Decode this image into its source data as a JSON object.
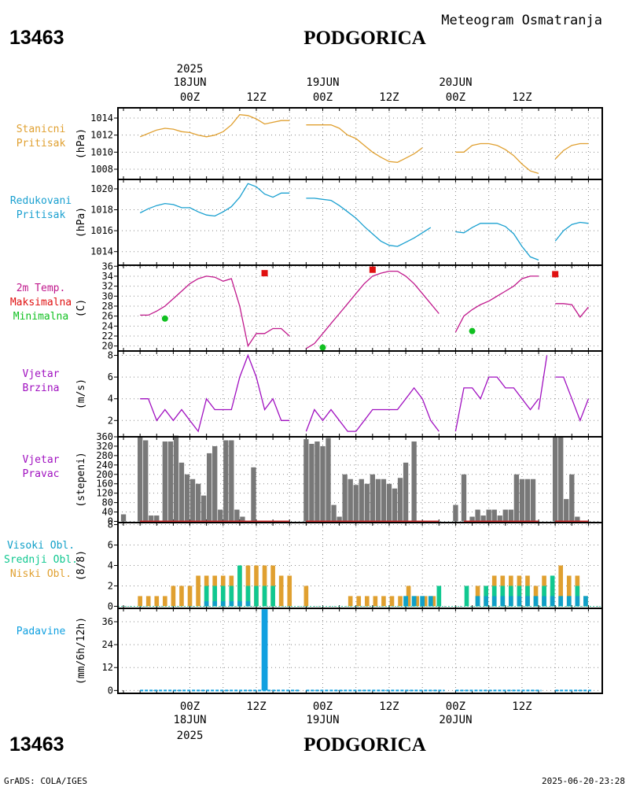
{
  "header": {
    "station_id": "13463",
    "station_name": "PODGORICA",
    "subtitle": "Meteogram Osmatranja",
    "footer_left": "GrADS: COLA/IGES",
    "footer_right": "2025-06-20-23:28"
  },
  "time_axis": {
    "ticks": [
      "00Z",
      "12Z",
      "00Z",
      "12Z",
      "00Z",
      "12Z"
    ],
    "top_dates": [
      {
        "year": "2025",
        "date": "18JUN"
      },
      {
        "year": "",
        "date": "19JUN"
      },
      {
        "year": "",
        "date": "20JUN"
      }
    ],
    "bottom_dates": [
      {
        "date": "18JUN",
        "year": "2025"
      },
      {
        "date": "19JUN",
        "year": ""
      },
      {
        "date": "20JUN",
        "year": ""
      }
    ]
  },
  "colors": {
    "pressure": "#e0a030",
    "reduced": "#1aa0d0",
    "temp": "#c0188c",
    "tmax": "#e01010",
    "tmin": "#10c020",
    "wind": "#a010c0",
    "dir_bar": "#787878",
    "dir_base": "#d03030",
    "cloud_high": "#10a0c8",
    "cloud_mid": "#10c890",
    "cloud_low": "#e0a030",
    "precip": "#10a0e0"
  },
  "chart_data": [
    {
      "type": "line",
      "panel": "station_pressure",
      "labels": [
        "Stanicni",
        "Pritisak"
      ],
      "ylabel": "(hPa)",
      "yticks": [
        1008,
        1010,
        1012,
        1014
      ],
      "ylim": [
        1006.8,
        1015.2
      ],
      "segments": [
        {
          "x": [
            -18,
            -15,
            -12,
            -9,
            -6,
            -3,
            0,
            3,
            6,
            9,
            12,
            15,
            18,
            21,
            24,
            27,
            30,
            33,
            36,
            39,
            42,
            45,
            48,
            51,
            54
          ],
          "y": [
            1011.8,
            1012.2,
            1012.6,
            1012.8,
            1012.7,
            1012.4,
            1012.3,
            1012.0,
            1011.8,
            1012.0,
            1012.4,
            1013.2,
            1014.4,
            1014.3,
            1013.9,
            1013.3,
            1013.5,
            1013.7,
            1013.7,
            null,
            null,
            null,
            null,
            null,
            null
          ]
        },
        {
          "x": [
            42,
            45,
            48,
            51,
            54,
            57,
            60,
            63,
            66,
            69,
            72,
            75,
            78,
            81,
            84,
            87,
            90
          ],
          "y": [
            1013.2,
            1013.2,
            1013.2,
            1013.2,
            1012.8,
            1012.0,
            1011.6,
            1010.8,
            1010.0,
            1009.4,
            1008.9,
            1008.8,
            1009.3,
            1009.8,
            1010.5,
            null,
            null
          ]
        },
        {
          "x": [
            96,
            99,
            102,
            105,
            108,
            111,
            114,
            117,
            120,
            123,
            126
          ],
          "y": [
            1010.0,
            1010.0,
            1010.8,
            1011.0,
            1011.0,
            1010.8,
            1010.3,
            1009.6,
            1008.6,
            1007.8,
            1007.5
          ]
        },
        {
          "x": [
            132,
            135,
            138,
            141,
            144
          ],
          "y": [
            1009.2,
            1010.2,
            1010.8,
            1011.0,
            1011.0
          ]
        }
      ]
    },
    {
      "type": "line",
      "panel": "reduced_pressure",
      "labels": [
        "Redukovani",
        "Pritisak"
      ],
      "ylabel": "(hPa)",
      "yticks": [
        1014,
        1016,
        1018,
        1020
      ],
      "ylim": [
        1012.7,
        1020.9
      ],
      "segments": [
        {
          "x": [
            -18,
            -15,
            -12,
            -9,
            -6,
            -3,
            0,
            3,
            6,
            9,
            12,
            15,
            18,
            21,
            24,
            27,
            30,
            33,
            36,
            39,
            42,
            45,
            48,
            51,
            54
          ],
          "y": [
            1017.7,
            1018.1,
            1018.4,
            1018.6,
            1018.5,
            1018.2,
            1018.2,
            1017.8,
            1017.5,
            1017.4,
            1017.8,
            1018.3,
            1019.2,
            1020.5,
            1020.2,
            1019.5,
            1019.2,
            1019.6,
            1019.6,
            null,
            null,
            null,
            null,
            null,
            null
          ]
        },
        {
          "x": [
            42,
            45,
            48,
            51,
            54,
            57,
            60,
            63,
            66,
            69,
            72,
            75,
            78,
            81,
            84,
            87,
            90
          ],
          "y": [
            1019.1,
            1019.1,
            1019.0,
            1018.9,
            1018.4,
            1017.8,
            1017.2,
            1016.4,
            1015.7,
            1015.0,
            1014.6,
            1014.5,
            1014.9,
            1015.3,
            1015.8,
            1016.3,
            null
          ]
        },
        {
          "x": [
            96,
            99,
            102,
            105,
            108,
            111,
            114,
            117,
            120,
            123,
            126
          ],
          "y": [
            1015.9,
            1015.8,
            1016.3,
            1016.7,
            1016.7,
            1016.7,
            1016.4,
            1015.7,
            1014.5,
            1013.5,
            1013.2
          ]
        },
        {
          "x": [
            132,
            135,
            138,
            141,
            144
          ],
          "y": [
            1015.0,
            1016.0,
            1016.6,
            1016.8,
            1016.7
          ]
        }
      ]
    },
    {
      "type": "line",
      "panel": "temperature",
      "labels": [
        "2m Temp.",
        "Maksimalna",
        "Minimalna"
      ],
      "ylabel": "(C)",
      "yticks": [
        20,
        22,
        24,
        26,
        28,
        30,
        32,
        34,
        36
      ],
      "ylim": [
        19,
        36.2
      ],
      "segments": [
        {
          "x": [
            -18,
            -15,
            -12,
            -9,
            -6,
            -3,
            0,
            3,
            6,
            9,
            12,
            15,
            18,
            21,
            24,
            27,
            30,
            33,
            36
          ],
          "y": [
            26.2,
            26.2,
            27.0,
            28.0,
            29.5,
            31.0,
            32.5,
            33.5,
            34.0,
            33.8,
            33.0,
            33.5,
            28.0,
            20.0,
            22.5,
            22.5,
            23.5,
            23.5,
            22.0
          ]
        },
        {
          "x": [
            42,
            45,
            48,
            51,
            54,
            57,
            60,
            63,
            66,
            69,
            72,
            75,
            78,
            81,
            84,
            87,
            90
          ],
          "y": [
            19.5,
            20.5,
            22.5,
            24.5,
            26.5,
            28.5,
            30.5,
            32.5,
            34.0,
            34.6,
            35.0,
            35.0,
            34.0,
            32.5,
            30.5,
            28.5,
            26.5
          ]
        },
        {
          "x": [
            96,
            99,
            102,
            105,
            108,
            111,
            114,
            117,
            120,
            123,
            126
          ],
          "y": [
            22.8,
            26.0,
            27.3,
            28.3,
            29.0,
            30.0,
            31.0,
            32.0,
            33.5,
            34.0,
            34.0
          ]
        },
        {
          "x": [
            132,
            135,
            138,
            141,
            144
          ],
          "y": [
            28.5,
            28.5,
            28.3,
            25.8,
            27.8
          ]
        }
      ],
      "max_points": [
        {
          "x": 27,
          "y": 34.6
        },
        {
          "x": 66,
          "y": 35.3
        },
        {
          "x": 132,
          "y": 34.4
        }
      ],
      "min_points": [
        {
          "x": -9,
          "y": 25.5
        },
        {
          "x": 48,
          "y": 19.7
        },
        {
          "x": 102,
          "y": 23.0
        }
      ]
    },
    {
      "type": "line",
      "panel": "wind_speed",
      "labels": [
        "Vjetar",
        "Brzina"
      ],
      "ylabel": "(m/s)",
      "yticks": [
        2,
        4,
        6,
        8
      ],
      "ylim": [
        0.5,
        8.4
      ],
      "segments": [
        {
          "x": [
            -18,
            -15,
            -12,
            -9,
            -6,
            -3,
            0,
            3,
            6,
            9,
            12,
            15,
            18,
            21,
            24,
            27,
            30,
            33,
            36
          ],
          "y": [
            4,
            4,
            2,
            3,
            2,
            3,
            2,
            1,
            4,
            3,
            3,
            3,
            6,
            8,
            6,
            3,
            4,
            2,
            2
          ]
        },
        {
          "x": [
            42,
            45,
            48,
            51,
            54,
            57,
            60,
            63,
            66,
            69,
            72,
            75,
            78,
            81,
            84,
            87,
            90
          ],
          "y": [
            1,
            3,
            2,
            3,
            2,
            1,
            1,
            2,
            3,
            3,
            3,
            3,
            4,
            5,
            4,
            2,
            1
          ]
        },
        {
          "x": [
            96,
            99,
            102,
            105,
            108,
            111,
            114,
            117,
            120,
            123,
            126
          ],
          "y": [
            1,
            5,
            5,
            4,
            6,
            6,
            5,
            5,
            4,
            3,
            4
          ]
        },
        {
          "x": [
            126,
            129
          ],
          "y": [
            3,
            8
          ]
        },
        {
          "x": [
            132,
            135,
            138,
            141,
            144
          ],
          "y": [
            6,
            6,
            4,
            2,
            4
          ]
        }
      ]
    },
    {
      "type": "bar",
      "panel": "wind_direction",
      "labels": [
        "Vjetar",
        "Pravac"
      ],
      "ylabel": "(stepeni)",
      "yticks": [
        0,
        40,
        80,
        120,
        160,
        200,
        240,
        280,
        320,
        360
      ],
      "ylim": [
        -5,
        360
      ],
      "bar_width_hours": 2,
      "x": [
        -24,
        -18,
        -16,
        -14,
        -12,
        -9,
        -7,
        -5,
        -3,
        -1,
        1,
        3,
        5,
        7,
        9,
        11,
        13,
        15,
        17,
        19,
        21,
        23,
        25,
        27,
        29,
        36,
        42,
        44,
        46,
        48,
        50,
        52,
        54,
        56,
        58,
        60,
        62,
        64,
        66,
        68,
        70,
        72,
        74,
        76,
        78,
        81,
        84,
        87,
        96,
        99,
        102,
        104,
        106,
        108,
        110,
        112,
        114,
        116,
        118,
        120,
        122,
        124,
        126,
        128,
        130,
        132,
        134,
        136,
        138,
        140,
        142,
        144
      ],
      "y": [
        30,
        360,
        345,
        25,
        25,
        340,
        340,
        365,
        250,
        200,
        180,
        160,
        110,
        290,
        320,
        50,
        345,
        345,
        50,
        20,
        0,
        230,
        0,
        0,
        0,
        0,
        350,
        330,
        340,
        320,
        355,
        70,
        20,
        200,
        180,
        155,
        180,
        160,
        200,
        180,
        180,
        160,
        140,
        185,
        250,
        340,
        0,
        0,
        70,
        200,
        20,
        50,
        25,
        50,
        50,
        25,
        50,
        50,
        200,
        180,
        180,
        180,
        0,
        0,
        0,
        360,
        360,
        95,
        200,
        20,
        0,
        0
      ]
    },
    {
      "type": "bar",
      "panel": "cloud_cover",
      "labels": [
        "Visoki Obl.",
        "Srednji Obl.",
        "Niski Obl."
      ],
      "ylabel": "(8/8)",
      "yticks": [
        0,
        2,
        4,
        6,
        8
      ],
      "ylim": [
        -0.2,
        8.2
      ],
      "series": [
        {
          "name": "Niski",
          "color_key": "cloud_low",
          "x": [
            -18,
            -15,
            -12,
            -9,
            -6,
            -3,
            0,
            3,
            6,
            9,
            12,
            15,
            18,
            21,
            24,
            27,
            30,
            33,
            36,
            42,
            58,
            61,
            64,
            67,
            70,
            73,
            76,
            79,
            82,
            85,
            88,
            104,
            107,
            110,
            113,
            116,
            119,
            122,
            125,
            128,
            131,
            134,
            137,
            140,
            143
          ],
          "y": [
            1,
            1,
            1,
            1,
            2,
            2,
            2,
            3,
            3,
            3,
            3,
            3,
            4,
            4,
            4,
            4,
            4,
            3,
            3,
            2,
            1,
            1,
            1,
            1,
            1,
            1,
            1,
            2,
            1,
            1,
            1,
            2,
            2,
            3,
            3,
            3,
            3,
            3,
            2,
            3,
            2,
            4,
            3,
            3,
            1
          ]
        },
        {
          "name": "Srednji",
          "color_key": "cloud_mid",
          "x": [
            6,
            9,
            12,
            15,
            18,
            21,
            24,
            27,
            30,
            78,
            81,
            84,
            87,
            90,
            100,
            104,
            107,
            110,
            113,
            116,
            119,
            122,
            125,
            128,
            131,
            134,
            137,
            140,
            143
          ],
          "y": [
            2,
            2,
            2,
            2,
            4,
            2,
            2,
            2,
            2,
            1,
            1,
            1,
            1,
            2,
            2,
            1,
            2,
            2,
            2,
            2,
            2,
            2,
            1,
            2,
            3,
            1,
            1,
            2,
            1
          ]
        },
        {
          "name": "Visoki",
          "color_key": "cloud_high",
          "x": [
            6,
            9,
            12,
            15,
            18,
            21,
            78,
            81,
            84,
            87,
            104,
            107,
            110,
            113,
            116,
            119,
            122,
            125,
            128,
            131,
            134,
            137,
            140,
            143
          ],
          "y": [
            0.5,
            0.5,
            0.5,
            0.5,
            0.5,
            0.5,
            1,
            1,
            1,
            1,
            1,
            1,
            1,
            1,
            1,
            1,
            1,
            1,
            1,
            1,
            1,
            1,
            1,
            1
          ]
        }
      ]
    },
    {
      "type": "bar",
      "panel": "precipitation",
      "labels": [
        "Padavine"
      ],
      "ylabel": "(mm/6h/12h)",
      "yticks": [
        0,
        12,
        24,
        36
      ],
      "ylim": [
        -1.5,
        43
      ],
      "bar_width_hours": 2,
      "x": [
        27
      ],
      "y": [
        42.5
      ],
      "trace_ranges": [
        [
          -18,
          40
        ],
        [
          42,
          92
        ],
        [
          96,
          127
        ],
        [
          132,
          145
        ]
      ]
    }
  ]
}
